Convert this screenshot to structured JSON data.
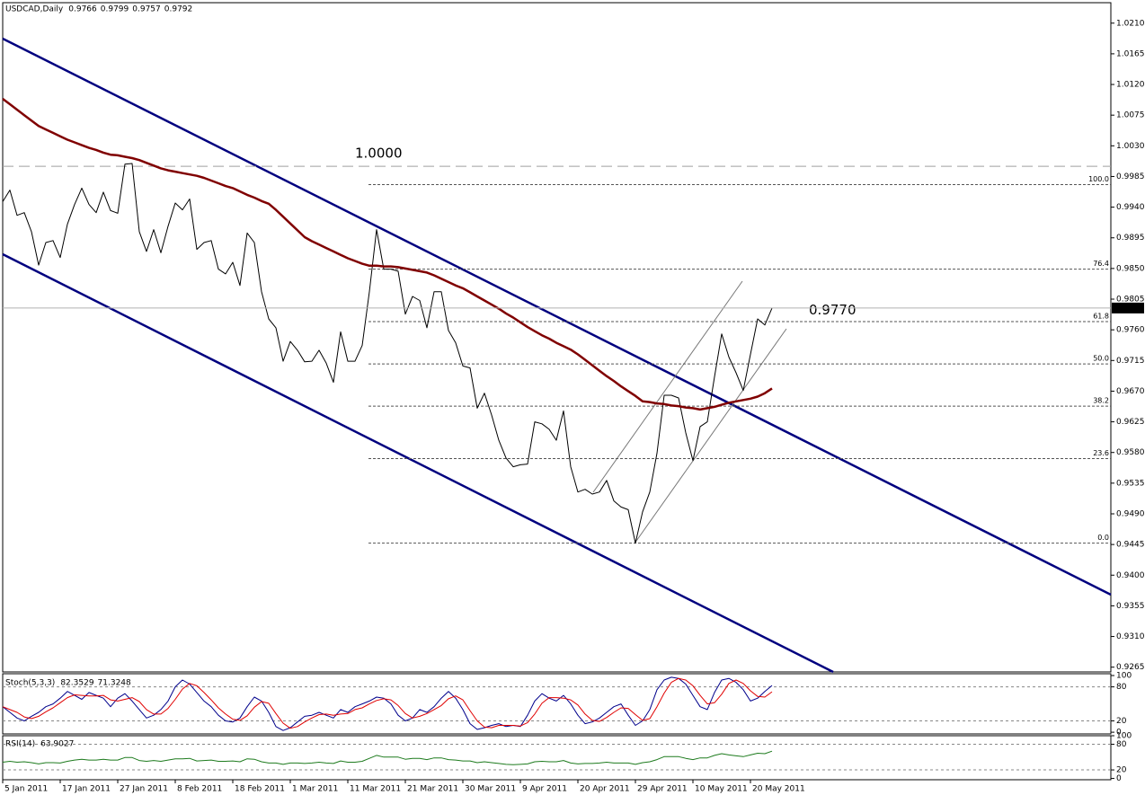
{
  "chart_data": [
    {
      "type": "line",
      "title": "USDCAD,Daily",
      "ohlc": [
        0.9766,
        0.9799,
        0.9757,
        0.9792
      ],
      "categories": [
        "5 Jan 2011",
        null,
        null,
        null,
        null,
        null,
        null,
        null,
        "17 Jan 2011",
        null,
        null,
        null,
        null,
        null,
        null,
        null,
        "27 Jan 2011",
        null,
        null,
        null,
        null,
        null,
        null,
        null,
        "8 Feb 2011",
        null,
        null,
        null,
        null,
        null,
        null,
        null,
        "18 Feb 2011",
        null,
        null,
        null,
        null,
        null,
        null,
        null,
        "1 Mar 2011",
        null,
        null,
        null,
        null,
        null,
        null,
        null,
        "11 Mar 2011",
        null,
        null,
        null,
        null,
        null,
        null,
        null,
        "21 Mar 2011",
        null,
        null,
        null,
        null,
        null,
        null,
        null,
        "30 Mar 2011",
        null,
        null,
        null,
        null,
        null,
        null,
        null,
        "9 Apr 2011",
        null,
        null,
        null,
        null,
        null,
        null,
        null,
        "20 Apr 2011",
        null,
        null,
        null,
        null,
        null,
        null,
        null,
        "29 Apr 2011",
        null,
        null,
        null,
        null,
        null,
        null,
        null,
        "10 May 2011",
        null,
        null,
        null,
        null,
        null,
        null,
        null,
        "20 May 2011",
        null,
        null,
        null
      ],
      "series": [
        {
          "color": "#000000",
          "values": [
            0.9948,
            0.9965,
            0.9928,
            0.9932,
            0.9904,
            0.9855,
            0.9888,
            0.9891,
            0.9866,
            0.9915,
            0.9944,
            0.9968,
            0.9944,
            0.9932,
            0.9962,
            0.9935,
            0.9931,
            1.0003,
            1.0004,
            0.9904,
            0.9875,
            0.9907,
            0.9873,
            0.9912,
            0.9946,
            0.9936,
            0.9952,
            0.9878,
            0.9888,
            0.9891,
            0.9849,
            0.9842,
            0.9859,
            0.9825,
            0.9902,
            0.9888,
            0.9816,
            0.9776,
            0.9763,
            0.9714,
            0.9743,
            0.973,
            0.9713,
            0.9714,
            0.973,
            0.9711,
            0.9683,
            0.9757,
            0.9714,
            0.9714,
            0.9737,
            0.9816,
            0.9907,
            0.9849,
            0.9849,
            0.9846,
            0.9783,
            0.9809,
            0.9803,
            0.9763,
            0.9816,
            0.9816,
            0.9759,
            0.9741,
            0.9707,
            0.9704,
            0.9645,
            0.9667,
            0.9635,
            0.9598,
            0.9572,
            0.9559,
            0.9562,
            0.9563,
            0.9625,
            0.9622,
            0.9614,
            0.9598,
            0.9641,
            0.9559,
            0.9522,
            0.9526,
            0.9519,
            0.9522,
            0.9539,
            0.9509,
            0.95,
            0.9496,
            0.9447,
            0.9493,
            0.9522,
            0.9579,
            0.9664,
            0.9664,
            0.966,
            0.9609,
            0.9568,
            0.9618,
            0.9625,
            0.9691,
            0.9754,
            0.972,
            0.9697,
            0.9671,
            0.9724,
            0.9776,
            0.9767,
            0.9792
          ]
        },
        {
          "color": "#800000",
          "values": [
            1.0099,
            1.0091,
            1.0083,
            1.0075,
            1.0067,
            1.0059,
            1.0054,
            1.0049,
            1.0044,
            1.0039,
            1.0035,
            1.0031,
            1.0027,
            1.0024,
            1.002,
            1.0017,
            1.0016,
            1.0014,
            1.0012,
            1.0009,
            1.0005,
            1.0001,
            0.9997,
            0.9994,
            0.9992,
            0.999,
            0.9988,
            0.9986,
            0.9983,
            0.9979,
            0.9975,
            0.9971,
            0.9968,
            0.9963,
            0.9958,
            0.9954,
            0.9949,
            0.9945,
            0.9936,
            0.9926,
            0.9916,
            0.9906,
            0.9896,
            0.989,
            0.9885,
            0.988,
            0.9875,
            0.987,
            0.9865,
            0.9861,
            0.9857,
            0.9854,
            0.9854,
            0.9853,
            0.9853,
            0.9852,
            0.985,
            0.9848,
            0.9846,
            0.9844,
            0.984,
            0.9835,
            0.983,
            0.9825,
            0.9821,
            0.9815,
            0.9809,
            0.9803,
            0.9797,
            0.9791,
            0.9784,
            0.9778,
            0.9771,
            0.9764,
            0.9758,
            0.9752,
            0.9747,
            0.9741,
            0.9736,
            0.9731,
            0.9724,
            0.9716,
            0.9708,
            0.97,
            0.9692,
            0.9685,
            0.9677,
            0.967,
            0.9663,
            0.9655,
            0.9654,
            0.9652,
            0.9651,
            0.9649,
            0.9648,
            0.9646,
            0.9645,
            0.9643,
            0.9645,
            0.9647,
            0.965,
            0.9653,
            0.9655,
            0.9657,
            0.9659,
            0.9662,
            0.9667,
            0.9674
          ]
        }
      ],
      "ylim": [
        0.9258,
        1.024
      ],
      "yticks": [
        {
          "value": 1.021,
          "label": "1.0210"
        },
        1.0165,
        {
          "value": 1.012,
          "label": "1.0120"
        },
        1.0075,
        {
          "value": 1.003,
          "label": "1.0030"
        },
        0.9985,
        {
          "value": 0.994,
          "label": "0.9940"
        },
        0.9895,
        {
          "value": 0.985,
          "label": "0.9850"
        },
        0.9805,
        {
          "value": 0.976,
          "label": "0.9760"
        },
        0.9715,
        {
          "value": 0.967,
          "label": "0.9670"
        },
        0.9625,
        {
          "value": 0.958,
          "label": "0.9580"
        },
        0.9535,
        {
          "value": 0.949,
          "label": "0.9490"
        },
        0.9445,
        {
          "value": 0.94,
          "label": "0.9400"
        },
        0.9355,
        {
          "value": 0.931,
          "label": "0.9310"
        },
        0.9265
      ],
      "levels": [
        {
          "value": 1.0,
          "label": "1.0000",
          "color": "#a0a0a0",
          "line": true
        },
        {
          "value": 0.977,
          "label": "0.9770",
          "color": "#cc2a2a",
          "line": false
        }
      ],
      "fibonacci": {
        "color": "#555555",
        "levels": [
          {
            "value": 0.9973,
            "label": "100.0"
          },
          {
            "value": 0.9849,
            "label": "76.4"
          },
          {
            "value": 0.9772,
            "label": "61.8"
          },
          {
            "value": 0.971,
            "label": "50.0"
          },
          {
            "value": 0.9648,
            "label": "38.2"
          },
          {
            "value": 0.9571,
            "label": "23.6"
          },
          {
            "value": 0.9447,
            "label": "0.0"
          }
        ]
      }
    },
    {
      "type": "line",
      "title": "Stoch(5,3,3)",
      "series": [
        {
          "color": "#00008b",
          "values": [
            45,
            35,
            25,
            20,
            28,
            35,
            45,
            50,
            60,
            72,
            65,
            58,
            70,
            65,
            60,
            45,
            60,
            68,
            55,
            40,
            25,
            30,
            40,
            55,
            80,
            92,
            85,
            70,
            55,
            45,
            30,
            20,
            18,
            25,
            45,
            62,
            55,
            35,
            10,
            3,
            8,
            18,
            28,
            30,
            35,
            30,
            25,
            40,
            35,
            45,
            50,
            55,
            62,
            60,
            50,
            30,
            20,
            25,
            40,
            35,
            45,
            60,
            72,
            60,
            40,
            15,
            5,
            8,
            12,
            15,
            10,
            12,
            10,
            30,
            55,
            68,
            60,
            55,
            65,
            50,
            30,
            15,
            18,
            25,
            35,
            45,
            50,
            30,
            12,
            20,
            40,
            75,
            92,
            97,
            95,
            85,
            65,
            45,
            40,
            70,
            92,
            95,
            88,
            75,
            55,
            60,
            72,
            82.3529
          ]
        },
        {
          "color": "#e00000",
          "values": [
            45,
            40,
            35,
            27,
            24,
            28,
            36,
            43,
            52,
            61,
            66,
            65,
            64,
            64,
            65,
            57,
            55,
            58,
            61,
            54,
            40,
            32,
            32,
            42,
            58,
            76,
            86,
            82,
            70,
            57,
            43,
            32,
            23,
            21,
            29,
            44,
            54,
            51,
            33,
            16,
            7,
            10,
            18,
            25,
            31,
            32,
            30,
            32,
            33,
            40,
            43,
            50,
            56,
            59,
            57,
            47,
            33,
            25,
            28,
            33,
            40,
            47,
            59,
            64,
            57,
            38,
            20,
            9,
            8,
            12,
            12,
            12,
            11,
            17,
            32,
            51,
            61,
            61,
            60,
            57,
            48,
            32,
            21,
            19,
            26,
            35,
            43,
            42,
            31,
            21,
            24,
            45,
            69,
            88,
            95,
            92,
            82,
            65,
            50,
            52,
            67,
            86,
            92,
            86,
            73,
            63,
            62,
            71.3248
          ]
        }
      ],
      "ylim": [
        -3,
        100
      ],
      "yticks": [
        0,
        20,
        80,
        100
      ],
      "levels": [
        20,
        80
      ]
    },
    {
      "type": "line",
      "title": "RSI(14)",
      "series": [
        {
          "color": "#1e7b1e",
          "values": [
            38,
            40,
            38,
            39,
            37,
            34,
            37,
            37,
            36,
            40,
            43,
            45,
            43,
            43,
            45,
            43,
            43,
            49,
            49,
            42,
            40,
            42,
            40,
            43,
            46,
            46,
            47,
            41,
            42,
            43,
            40,
            40,
            41,
            39,
            46,
            45,
            39,
            36,
            36,
            33,
            36,
            36,
            35,
            36,
            38,
            36,
            35,
            41,
            38,
            38,
            40,
            47,
            54,
            50,
            50,
            50,
            45,
            47,
            47,
            44,
            48,
            48,
            44,
            43,
            41,
            41,
            37,
            39,
            37,
            35,
            33,
            32,
            33,
            34,
            39,
            40,
            39,
            39,
            42,
            36,
            34,
            35,
            35,
            36,
            38,
            36,
            36,
            36,
            33,
            37,
            39,
            44,
            51,
            51,
            51,
            47,
            44,
            48,
            48,
            54,
            58,
            55,
            53,
            51,
            55,
            59,
            58,
            63.9027
          ]
        }
      ],
      "ylim": [
        -3,
        100
      ],
      "yticks": [
        0,
        20,
        80,
        100
      ],
      "levels": [
        20,
        80
      ]
    }
  ]
}
